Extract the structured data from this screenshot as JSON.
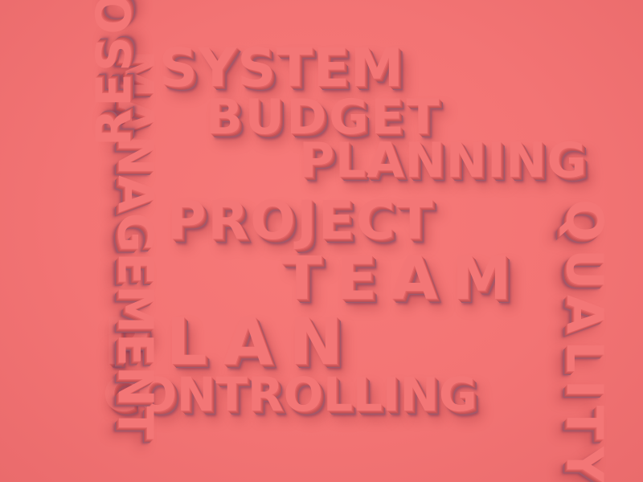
{
  "word_cloud": {
    "words": [
      {
        "id": "system",
        "text": "SYSTEM",
        "orientation": "horizontal"
      },
      {
        "id": "budget",
        "text": "BUDGET",
        "orientation": "horizontal"
      },
      {
        "id": "planning",
        "text": "PLANNING",
        "orientation": "horizontal"
      },
      {
        "id": "project",
        "text": "PROJECT",
        "orientation": "horizontal"
      },
      {
        "id": "team",
        "text": "TEAM",
        "orientation": "horizontal"
      },
      {
        "id": "plan",
        "text": "PLAN",
        "orientation": "horizontal"
      },
      {
        "id": "controlling",
        "text": "CONTROLLING",
        "orientation": "horizontal"
      },
      {
        "id": "management",
        "text": "MANAGEMENT",
        "orientation": "vertical-top-to-bottom"
      },
      {
        "id": "resources",
        "text": "RESOURCES",
        "orientation": "vertical-bottom-to-top"
      },
      {
        "id": "quality",
        "text": "QUALITY",
        "orientation": "vertical-top-to-bottom"
      }
    ]
  },
  "colors": {
    "background": "#f27575",
    "text": "#f37676",
    "shadow": "#9d5a6d"
  }
}
